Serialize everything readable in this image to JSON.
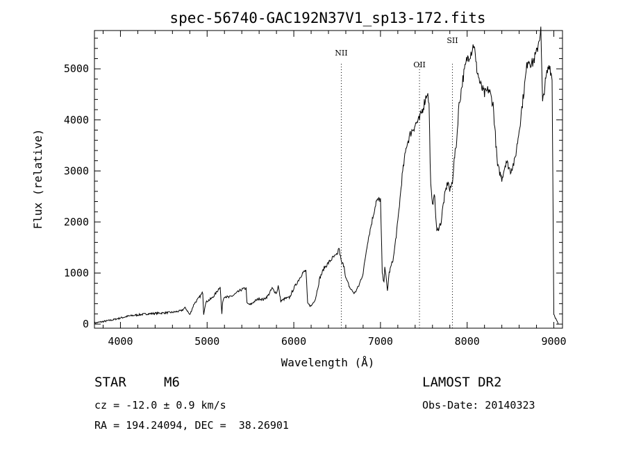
{
  "chart_data": {
    "type": "line",
    "title": "spec-56740-GAC192N37V1_sp13-172.fits",
    "xlabel": "Wavelength (Å)",
    "ylabel": "Flux (relative)",
    "xlim": [
      3700,
      9100
    ],
    "ylim": [
      -80,
      5750
    ],
    "xticks": [
      4000,
      5000,
      6000,
      7000,
      8000,
      9000
    ],
    "yticks": [
      0,
      1000,
      2000,
      3000,
      4000,
      5000
    ],
    "grid": false,
    "lines": [
      {
        "name": "NII",
        "x": 6548
      },
      {
        "name": "OII",
        "x": 7450
      },
      {
        "name": "SII",
        "x": 7830
      }
    ],
    "series": [
      {
        "x": [
          3700,
          3800,
          3900,
          4000,
          4100,
          4200,
          4300,
          4400,
          4500,
          4600,
          4700,
          4750,
          4800,
          4850,
          4900,
          4950,
          4960,
          4980,
          5000,
          5050,
          5100,
          5150,
          5170,
          5180,
          5200,
          5250,
          5300,
          5350,
          5400,
          5450,
          5460,
          5500,
          5550,
          5600,
          5650,
          5700,
          5750,
          5800,
          5820,
          5850,
          5900,
          5950,
          6000,
          6050,
          6100,
          6140,
          6160,
          6200,
          6250,
          6300,
          6350,
          6400,
          6450,
          6500,
          6520,
          6550,
          6580,
          6600,
          6650,
          6700,
          6750,
          6800,
          6850,
          6900,
          6950,
          7000,
          7020,
          7040,
          7050,
          7080,
          7100,
          7150,
          7200,
          7250,
          7300,
          7350,
          7400,
          7420,
          7450,
          7500,
          7540,
          7560,
          7580,
          7600,
          7620,
          7650,
          7700,
          7720,
          7750,
          7780,
          7800,
          7830,
          7850,
          7880,
          7900,
          7950,
          8000,
          8050,
          8080,
          8100,
          8150,
          8200,
          8250,
          8300,
          8350,
          8400,
          8450,
          8500,
          8550,
          8600,
          8650,
          8700,
          8750,
          8800,
          8830,
          8850,
          8870,
          8890,
          8920,
          8950,
          8980,
          9000,
          9050
        ],
        "y": [
          20,
          50,
          80,
          120,
          160,
          180,
          200,
          210,
          220,
          230,
          260,
          320,
          180,
          400,
          500,
          620,
          200,
          400,
          450,
          500,
          600,
          740,
          200,
          450,
          550,
          520,
          560,
          620,
          680,
          700,
          400,
          380,
          450,
          500,
          480,
          550,
          700,
          600,
          750,
          450,
          500,
          520,
          700,
          850,
          1000,
          1050,
          400,
          350,
          500,
          900,
          1100,
          1200,
          1300,
          1350,
          1500,
          1200,
          1150,
          900,
          700,
          600,
          750,
          1000,
          1600,
          2000,
          2400,
          2450,
          1000,
          800,
          1150,
          650,
          1000,
          1300,
          2000,
          2900,
          3500,
          3750,
          3900,
          3950,
          4000,
          4300,
          4550,
          4300,
          2700,
          2300,
          2600,
          1800,
          2000,
          2300,
          2600,
          2800,
          2600,
          2800,
          3200,
          3600,
          4200,
          4800,
          5200,
          5350,
          5500,
          5100,
          4700,
          4500,
          4600,
          4300,
          3100,
          2850,
          3200,
          3000,
          3200,
          3800,
          4500,
          5200,
          5100,
          5300,
          5600,
          5750,
          4300,
          4600,
          4900,
          5100,
          4800,
          200,
          0
        ]
      }
    ]
  },
  "info": {
    "object_type": "STAR",
    "subclass": "M6",
    "survey": "LAMOST DR2",
    "cz": "cz = -12.0 ± 0.9 km/s",
    "obs_date": "Obs-Date: 20140323",
    "coords": "RA = 194.24094, DEC =  38.26901"
  }
}
